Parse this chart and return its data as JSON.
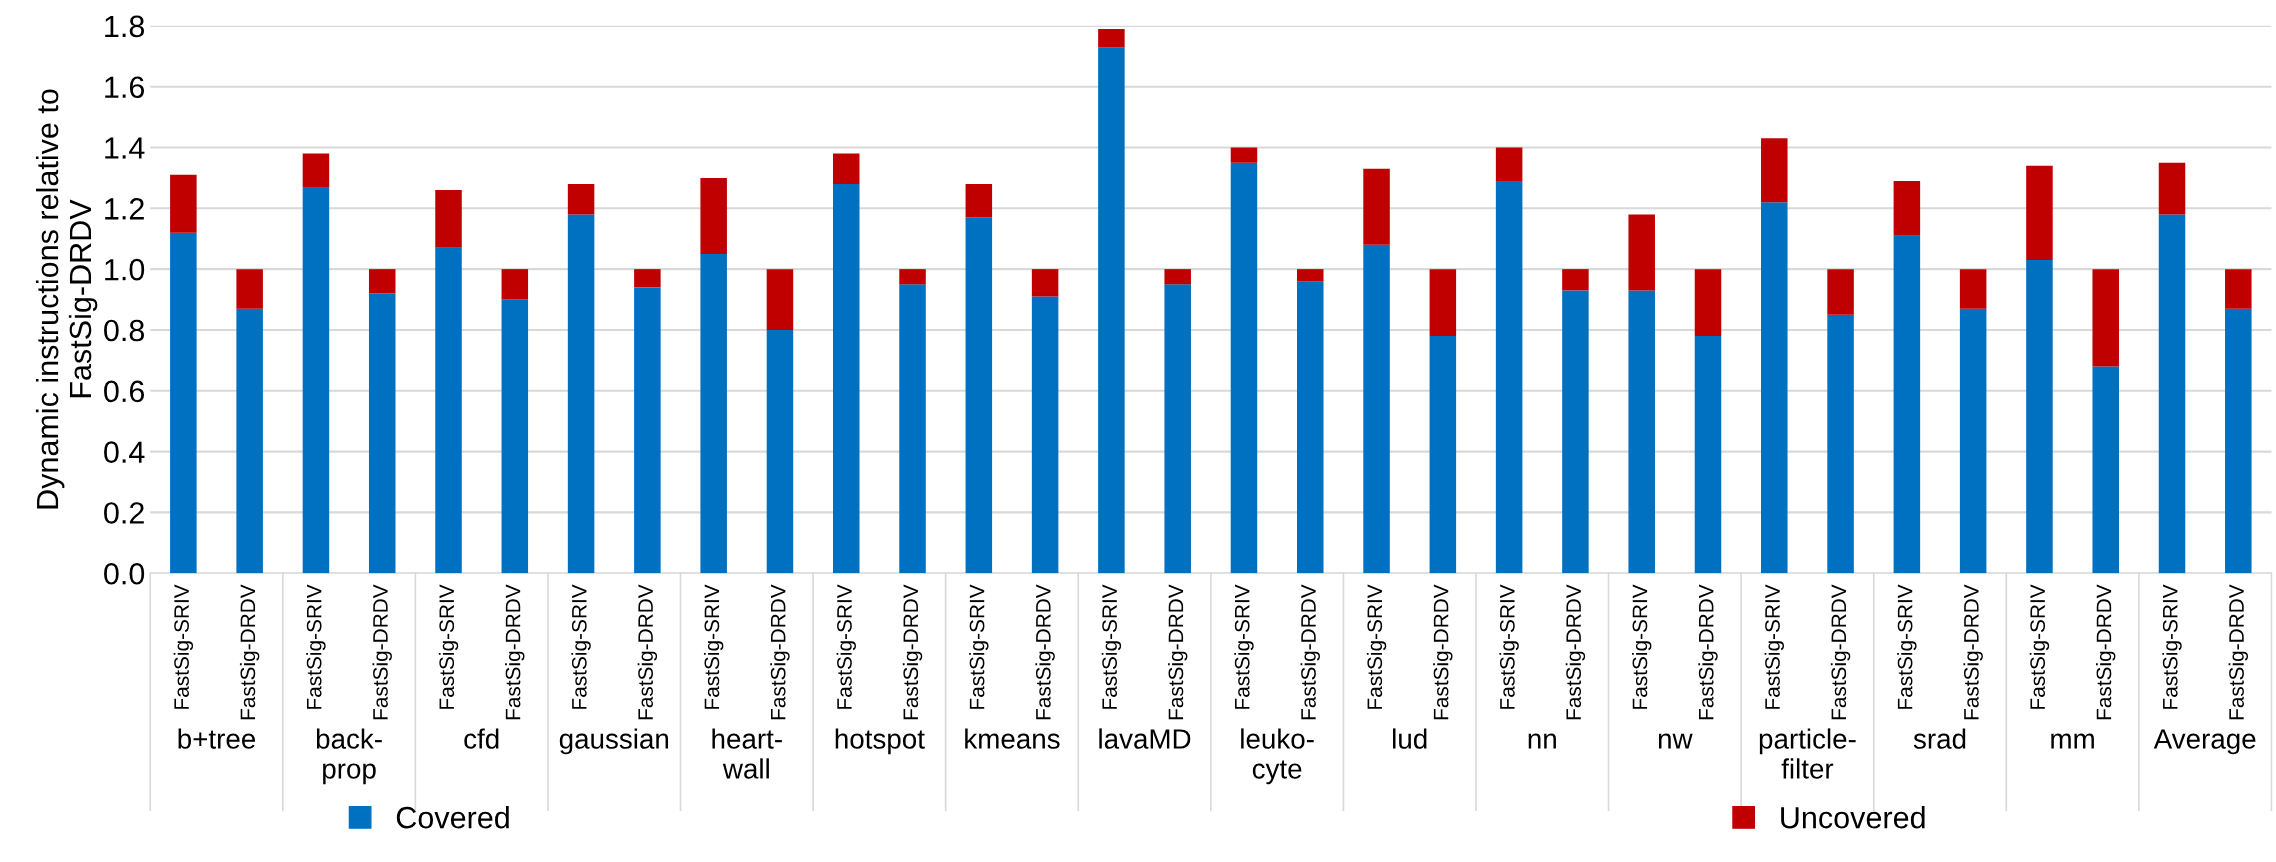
{
  "chart_data": {
    "type": "bar",
    "stacked": true,
    "ylabel": "Dynamic instructions relative to\nFastSig-DRDV",
    "categories": [
      "FastSig-SRIV",
      "FastSig-DRDV",
      "FastSig-SRIV",
      "FastSig-DRDV",
      "FastSig-SRIV",
      "FastSig-DRDV",
      "FastSig-SRIV",
      "FastSig-DRDV",
      "FastSig-SRIV",
      "FastSig-DRDV",
      "FastSig-SRIV",
      "FastSig-DRDV",
      "FastSig-SRIV",
      "FastSig-DRDV",
      "FastSig-SRIV",
      "FastSig-DRDV",
      "FastSig-SRIV",
      "FastSig-DRDV",
      "FastSig-SRIV",
      "FastSig-DRDV",
      "FastSig-SRIV",
      "FastSig-DRDV",
      "FastSig-SRIV",
      "FastSig-DRDV",
      "FastSig-SRIV",
      "FastSig-DRDV",
      "FastSig-SRIV",
      "FastSig-DRDV",
      "FastSig-SRIV",
      "FastSig-DRDV",
      "FastSig-SRIV",
      "FastSig-DRDV"
    ],
    "annotations": [
      "b+tree",
      "back-\nprop",
      "cfd",
      "gaussian",
      "heart-\nwall",
      "hotspot",
      "kmeans",
      "lavaMD",
      "leuko-\ncyte",
      "lud",
      "nn",
      "nw",
      "particle-\nfilter",
      "srad",
      "mm",
      "Average"
    ],
    "series": [
      {
        "name": "Covered",
        "color": "#0070c0",
        "values": [
          1.12,
          0.87,
          1.27,
          0.92,
          1.07,
          0.9,
          1.18,
          0.94,
          1.05,
          0.8,
          1.28,
          0.95,
          1.17,
          0.91,
          1.73,
          0.95,
          1.35,
          0.96,
          1.08,
          0.78,
          1.29,
          0.93,
          0.93,
          0.78,
          1.22,
          0.85,
          1.11,
          0.87,
          1.03,
          0.68,
          1.18,
          0.87
        ]
      },
      {
        "name": "Uncovered",
        "color": "#c00000",
        "values": [
          0.19,
          0.13,
          0.11,
          0.08,
          0.19,
          0.1,
          0.1,
          0.06,
          0.25,
          0.2,
          0.1,
          0.05,
          0.11,
          0.09,
          0.06,
          0.05,
          0.05,
          0.04,
          0.25,
          0.22,
          0.11,
          0.07,
          0.25,
          0.22,
          0.21,
          0.15,
          0.18,
          0.13,
          0.31,
          0.32,
          0.17,
          0.13
        ]
      }
    ],
    "ylim": [
      0,
      1.8
    ],
    "yticks": [
      {
        "value": 0,
        "label": "0.0"
      },
      {
        "value": 0.2,
        "label": "0.2"
      },
      {
        "value": 0.4,
        "label": "0.4"
      },
      {
        "value": 0.6,
        "label": "0.6"
      },
      {
        "value": 0.8,
        "label": "0.8"
      },
      {
        "value": 1,
        "label": "1.0"
      },
      {
        "value": 1.2,
        "label": "1.2"
      },
      {
        "value": 1.4,
        "label": "1.4"
      },
      {
        "value": 1.6,
        "label": "1.6"
      },
      {
        "value": 1.8,
        "label": "1.8"
      }
    ],
    "grid": "y",
    "legend": "bottom"
  }
}
